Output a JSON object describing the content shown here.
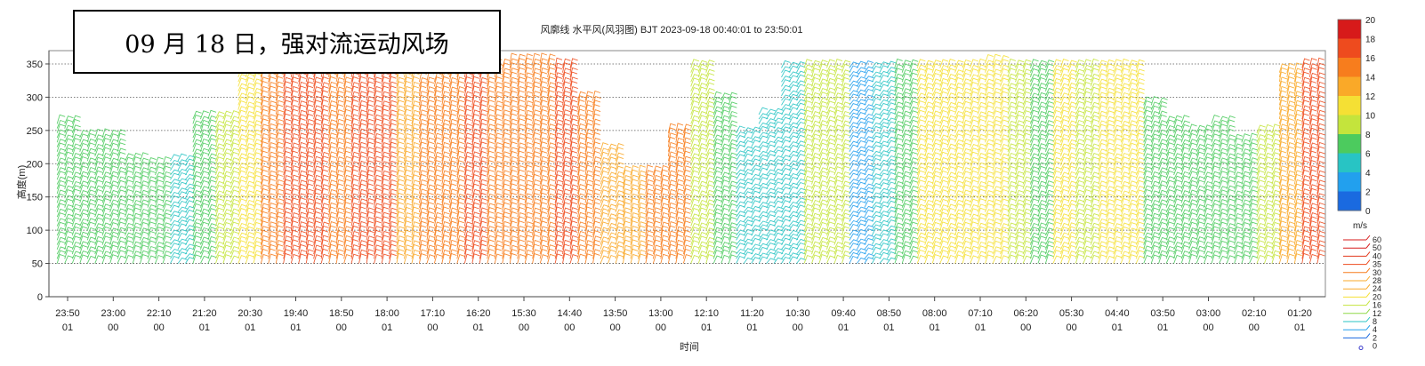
{
  "overlay_text": "09 月 18 日，强对流运动风场",
  "chart_data": {
    "type": "heatmap",
    "title": "风廓线 水平风(风羽图) BJT 2023-09-18 00:40:01 to 23:50:01",
    "xlabel": "时间",
    "ylabel": "高度(m)",
    "ylim": [
      0,
      370
    ],
    "yticks": [
      0,
      50,
      100,
      150,
      200,
      250,
      300,
      350
    ],
    "grid": "horizontal-dotted",
    "xticks": [
      [
        "23:50",
        "01"
      ],
      [
        "23:00",
        "00"
      ],
      [
        "22:10",
        "00"
      ],
      [
        "21:20",
        "01"
      ],
      [
        "20:30",
        "01"
      ],
      [
        "19:40",
        "01"
      ],
      [
        "18:50",
        "00"
      ],
      [
        "18:00",
        "01"
      ],
      [
        "17:10",
        "00"
      ],
      [
        "16:20",
        "01"
      ],
      [
        "15:30",
        "00"
      ],
      [
        "14:40",
        "00"
      ],
      [
        "13:50",
        "00"
      ],
      [
        "13:00",
        "00"
      ],
      [
        "12:10",
        "01"
      ],
      [
        "11:20",
        "01"
      ],
      [
        "10:30",
        "00"
      ],
      [
        "09:40",
        "01"
      ],
      [
        "08:50",
        "01"
      ],
      [
        "08:00",
        "01"
      ],
      [
        "07:10",
        "01"
      ],
      [
        "06:20",
        "00"
      ],
      [
        "05:30",
        "00"
      ],
      [
        "04:40",
        "01"
      ],
      [
        "03:50",
        "01"
      ],
      [
        "03:00",
        "00"
      ],
      [
        "02:10",
        "00"
      ],
      [
        "01:20",
        "01"
      ]
    ],
    "colorbar": {
      "ticks": [
        "20",
        "18",
        "16",
        "14",
        "12",
        "10",
        "8",
        "6",
        "4",
        "2",
        "0"
      ],
      "unit": "m/s",
      "colors": [
        "#d71a1a",
        "#ee4b1e",
        "#f77d1d",
        "#faa928",
        "#f5e034",
        "#c4e43c",
        "#4ccb5e",
        "#28c4c4",
        "#22a0ee",
        "#1a6ae0",
        "#1e3ccd"
      ]
    },
    "barb_legend": {
      "labels": [
        "60",
        "50",
        "40",
        "35",
        "30",
        "28",
        "24",
        "20",
        "16",
        "12",
        "8",
        "4",
        "2",
        "0"
      ]
    },
    "columns": [
      {
        "t": "23:50",
        "top": 262,
        "speed": 9
      },
      {
        "t": "23:30",
        "top": 245,
        "speed": 8
      },
      {
        "t": "23:00",
        "top": 240,
        "speed": 9
      },
      {
        "t": "22:40",
        "top": 205,
        "speed": 8
      },
      {
        "t": "22:10",
        "top": 200,
        "speed": 8
      },
      {
        "t": "21:50",
        "top": 210,
        "speed": 7
      },
      {
        "t": "21:20",
        "top": 270,
        "speed": 9
      },
      {
        "t": "21:00",
        "top": 270,
        "speed": 10
      },
      {
        "t": "20:30",
        "top": 330,
        "speed": 13
      },
      {
        "t": "20:10",
        "top": 345,
        "speed": 17
      },
      {
        "t": "19:40",
        "top": 350,
        "speed": 18
      },
      {
        "t": "19:20",
        "top": 352,
        "speed": 18
      },
      {
        "t": "18:50",
        "top": 348,
        "speed": 17
      },
      {
        "t": "18:30",
        "top": 350,
        "speed": 19
      },
      {
        "t": "18:00",
        "top": 345,
        "speed": 18
      },
      {
        "t": "17:40",
        "top": 330,
        "speed": 15
      },
      {
        "t": "17:10",
        "top": 325,
        "speed": 16
      },
      {
        "t": "16:50",
        "top": 345,
        "speed": 17
      },
      {
        "t": "16:20",
        "top": 352,
        "speed": 18
      },
      {
        "t": "16:00",
        "top": 350,
        "speed": 16
      },
      {
        "t": "15:30",
        "top": 355,
        "speed": 16
      },
      {
        "t": "15:10",
        "top": 352,
        "speed": 17
      },
      {
        "t": "14:40",
        "top": 350,
        "speed": 18
      },
      {
        "t": "14:20",
        "top": 300,
        "speed": 16
      },
      {
        "t": "13:50",
        "top": 220,
        "speed": 14
      },
      {
        "t": "13:30",
        "top": 185,
        "speed": 15
      },
      {
        "t": "13:00",
        "top": 185,
        "speed": 16
      },
      {
        "t": "12:40",
        "top": 250,
        "speed": 16
      },
      {
        "t": "12:10",
        "top": 350,
        "speed": 11
      },
      {
        "t": "11:50",
        "top": 300,
        "speed": 8
      },
      {
        "t": "11:20",
        "top": 250,
        "speed": 7
      },
      {
        "t": "11:00",
        "top": 280,
        "speed": 7
      },
      {
        "t": "10:30",
        "top": 350,
        "speed": 7
      },
      {
        "t": "10:10",
        "top": 345,
        "speed": 10
      },
      {
        "t": "09:40",
        "top": 345,
        "speed": 11
      },
      {
        "t": "09:20",
        "top": 350,
        "speed": 5
      },
      {
        "t": "08:50",
        "top": 345,
        "speed": 7
      },
      {
        "t": "08:30",
        "top": 350,
        "speed": 8
      },
      {
        "t": "08:00",
        "top": 350,
        "speed": 12
      },
      {
        "t": "07:40",
        "top": 345,
        "speed": 12
      },
      {
        "t": "07:10",
        "top": 350,
        "speed": 13
      },
      {
        "t": "06:50",
        "top": 355,
        "speed": 12
      },
      {
        "t": "06:20",
        "top": 350,
        "speed": 11
      },
      {
        "t": "06:00",
        "top": 350,
        "speed": 9
      },
      {
        "t": "05:30",
        "top": 350,
        "speed": 12
      },
      {
        "t": "05:10",
        "top": 345,
        "speed": 10
      },
      {
        "t": "04:40",
        "top": 350,
        "speed": 12
      },
      {
        "t": "04:20",
        "top": 345,
        "speed": 12
      },
      {
        "t": "03:50",
        "top": 290,
        "speed": 9
      },
      {
        "t": "03:30",
        "top": 260,
        "speed": 8
      },
      {
        "t": "03:00",
        "top": 250,
        "speed": 8
      },
      {
        "t": "02:40",
        "top": 265,
        "speed": 9
      },
      {
        "t": "02:10",
        "top": 235,
        "speed": 8
      },
      {
        "t": "01:50",
        "top": 250,
        "speed": 10
      },
      {
        "t": "01:20",
        "top": 340,
        "speed": 15
      },
      {
        "t": "01:00",
        "top": 350,
        "speed": 19
      }
    ]
  }
}
